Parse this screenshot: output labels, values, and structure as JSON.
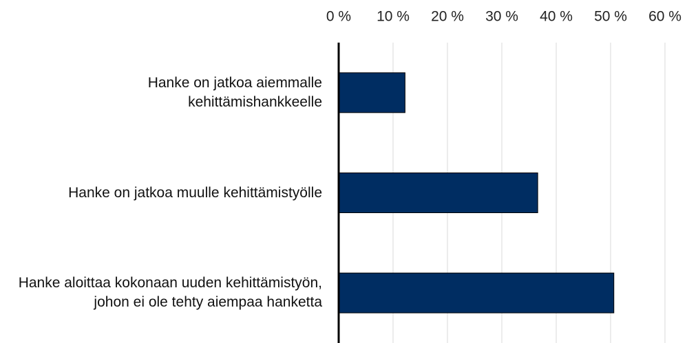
{
  "chart_data": {
    "type": "bar",
    "orientation": "horizontal",
    "categories": [
      "Hanke on jatkoa aiemmalle kehittämishankkeelle",
      "Hanke on jatkoa muulle kehittämistyölle",
      "Hanke aloittaa kokonaan uuden kehittämistyön, johon ei ole tehty aiempaa hanketta"
    ],
    "values": [
      12.2,
      36.6,
      50.6
    ],
    "color": "#002d62",
    "xlim": [
      0,
      60
    ],
    "xticks": [
      {
        "value": 0,
        "label": "0 %"
      },
      {
        "value": 10,
        "label": "10 %"
      },
      {
        "value": 20,
        "label": "20 %"
      },
      {
        "value": 30,
        "label": "30 %"
      },
      {
        "value": 40,
        "label": "40 %"
      },
      {
        "value": 50,
        "label": "50 %"
      },
      {
        "value": 60,
        "label": "60 %"
      }
    ],
    "grid": true
  }
}
